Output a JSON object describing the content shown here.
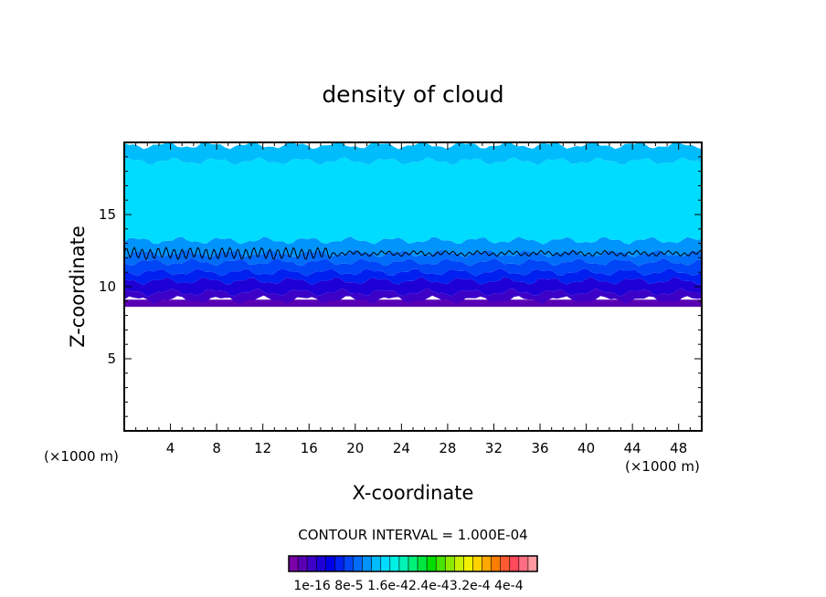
{
  "chart_data": {
    "type": "heatmap",
    "title": "density of cloud",
    "xlabel": "X-coordinate",
    "ylabel": "Z-coordinate",
    "x_unit_left": "(×1000 m)",
    "x_unit_right": "(×1000 m)",
    "xlim": [
      0,
      50
    ],
    "ylim": [
      0,
      20
    ],
    "x_ticks": [
      4,
      8,
      12,
      16,
      20,
      24,
      28,
      32,
      36,
      40,
      44,
      48
    ],
    "y_ticks": [
      5,
      10,
      15
    ],
    "grid": false,
    "contour_interval_label": "CONTOUR INTERVAL = 1.000E-04",
    "contour_line_level_z": 12.3,
    "cloud_base_z": 8.6,
    "cloud_top_z": 19.8,
    "layers": [
      {
        "z_bottom": 8.6,
        "z_top": 9.1,
        "level": 1
      },
      {
        "z_bottom": 9.1,
        "z_top": 9.6,
        "level": 2
      },
      {
        "z_bottom": 9.6,
        "z_top": 10.4,
        "level": 3
      },
      {
        "z_bottom": 10.4,
        "z_top": 11.0,
        "level": 5
      },
      {
        "z_bottom": 11.0,
        "z_top": 11.7,
        "level": 6
      },
      {
        "z_bottom": 11.7,
        "z_top": 12.3,
        "level": 7
      },
      {
        "z_bottom": 12.3,
        "z_top": 13.2,
        "level": 8
      },
      {
        "z_bottom": 13.2,
        "z_top": 18.7,
        "level": 10
      },
      {
        "z_bottom": 18.7,
        "z_top": 19.8,
        "level": 9
      }
    ],
    "colorbar": {
      "colors": [
        "#7a00a8",
        "#5a00b4",
        "#3c00c6",
        "#1e00d6",
        "#0000e6",
        "#0020f0",
        "#0046f6",
        "#006cfa",
        "#0094fc",
        "#00bcfd",
        "#00dcff",
        "#00f0e6",
        "#00f2b4",
        "#00f07a",
        "#00e640",
        "#00de00",
        "#46e400",
        "#8cea00",
        "#c8f000",
        "#f0f000",
        "#ffd200",
        "#ffa800",
        "#ff7e00",
        "#ff5a32",
        "#ff4a5a",
        "#ff6e82",
        "#ff9aa0"
      ],
      "labels": [
        "1e-16",
        "8e-5",
        "1.6e-4",
        "2.4e-4",
        "3.2e-4",
        "4e-4"
      ],
      "label_text": "1e-16 8e-5 1.6e-42.4e-43.2e-4 4e-4"
    }
  }
}
